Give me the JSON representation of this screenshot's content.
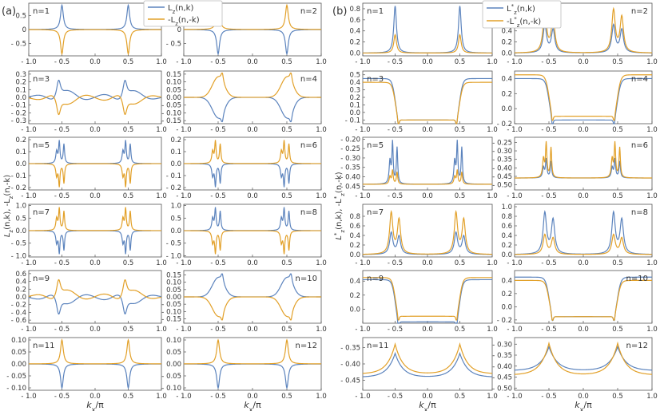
{
  "colors": {
    "blue": "#5b83bd",
    "orange": "#e2a028",
    "axis": "#555555",
    "text": "#333333"
  },
  "panels": [
    {
      "label": "(a)",
      "xlabel": "k_x/π",
      "ylabel_main": "L",
      "ylabel_sub": "z",
      "ylabel_rest": "(n,k), -L",
      "ylabel_sub2": "z",
      "ylabel_tail": "(n,-k)",
      "legend": [
        {
          "main": "L",
          "sub": "z",
          "sup": "",
          "rest": "(n,k)",
          "color": "blue"
        },
        {
          "main": "-L",
          "sub": "z",
          "sup": "",
          "rest": "(n,-k)",
          "color": "orange"
        }
      ]
    },
    {
      "label": "(b)",
      "xlabel": "k_x/π",
      "ylabel_main": "L",
      "ylabel_sub": "z",
      "ylabel_sup": "*",
      "ylabel_rest": "(n,k), -L",
      "ylabel_sub2": "z",
      "ylabel_sup2": "*",
      "ylabel_tail": "(n,-k)",
      "legend": [
        {
          "main": "L",
          "sub": "z",
          "sup": "*",
          "rest": "(n,k)",
          "color": "blue"
        },
        {
          "main": "-L",
          "sub": "z",
          "sup": "*",
          "rest": "(n,-k)",
          "color": "orange"
        }
      ]
    }
  ],
  "chart_data": [
    {
      "panel": 0,
      "col": 0,
      "n": 1,
      "type": "line",
      "label": "n=1",
      "ylim": [
        -0.95,
        0.95
      ],
      "yticks": [
        "0.5",
        "0",
        "- 0.5"
      ],
      "ytick_values": [
        0.5,
        0,
        -0.5
      ],
      "series": [
        {
          "name": "L_z(n,k)",
          "shape": "sharp",
          "kind": "pos",
          "amp": 0.88,
          "base": 0
        },
        {
          "name": "-L_z(n,-k)",
          "shape": "sharp",
          "kind": "neg",
          "amp": -0.88,
          "base": 0
        }
      ]
    },
    {
      "panel": 0,
      "col": 1,
      "n": 2,
      "type": "line",
      "label": "n=2",
      "ylim": [
        -0.95,
        0.95
      ],
      "yticks": [
        "0.5",
        "0",
        "- 0.5"
      ],
      "ytick_values": [
        0.5,
        0,
        -0.5
      ],
      "series": [
        {
          "name": "L_z(n,k)",
          "shape": "sharp",
          "kind": "neg",
          "amp": -0.88,
          "base": 0
        },
        {
          "name": "-L_z(n,-k)",
          "shape": "sharp",
          "kind": "pos",
          "amp": 0.88,
          "base": 0
        }
      ]
    },
    {
      "panel": 0,
      "col": 0,
      "n": 3,
      "type": "line",
      "label": "n=3",
      "ylim": [
        -0.34,
        0.34
      ],
      "yticks": [
        "0.3",
        "0.2",
        "0.1",
        "0.0",
        "- 0.1",
        "- 0.2",
        "- 0.3"
      ],
      "ytick_values": [
        0.3,
        0.2,
        0.1,
        0,
        -0.1,
        -0.2,
        -0.3
      ],
      "series": [
        {
          "name": "L_z(n,k)",
          "shape": "osc",
          "kind": "pos",
          "amp": 0.3,
          "base": 0
        },
        {
          "name": "-L_z(n,-k)",
          "shape": "osc",
          "kind": "neg",
          "amp": -0.3,
          "base": 0
        }
      ]
    },
    {
      "panel": 0,
      "col": 1,
      "n": 4,
      "type": "line",
      "label": "n=4",
      "ylim": [
        -0.17,
        0.17
      ],
      "yticks": [
        "0.15",
        "0.10",
        "0.05",
        "0.00",
        "- 0.05",
        "- 0.10",
        "- 0.15"
      ],
      "ytick_values": [
        0.15,
        0.1,
        0.05,
        0,
        -0.05,
        -0.1,
        -0.15
      ],
      "series": [
        {
          "name": "L_z(n,k)",
          "shape": "wide",
          "kind": "neg",
          "amp": -0.15,
          "base": 0
        },
        {
          "name": "-L_z(n,-k)",
          "shape": "wide",
          "kind": "pos",
          "amp": 0.15,
          "base": 0
        }
      ]
    },
    {
      "panel": 0,
      "col": 0,
      "n": 5,
      "type": "line",
      "label": "n=5",
      "ylim": [
        -0.22,
        0.22
      ],
      "yticks": [
        "0.2",
        "0.1",
        "0.0",
        "- 0.1",
        "- 0.2"
      ],
      "ytick_values": [
        0.2,
        0.1,
        0,
        -0.1,
        -0.2
      ],
      "series": [
        {
          "name": "L_z(n,k)",
          "shape": "multi",
          "kind": "pos",
          "amp": 0.2,
          "base": 0
        },
        {
          "name": "-L_z(n,-k)",
          "shape": "multi",
          "kind": "neg",
          "amp": -0.2,
          "base": 0
        }
      ]
    },
    {
      "panel": 0,
      "col": 1,
      "n": 6,
      "type": "line",
      "label": "n=6",
      "ylim": [
        -0.22,
        0.22
      ],
      "yticks": [
        "0.2",
        "0.1",
        "0.0",
        "- 0.1",
        "- 0.2"
      ],
      "ytick_values": [
        0.2,
        0.1,
        0,
        -0.1,
        -0.2
      ],
      "series": [
        {
          "name": "L_z(n,k)",
          "shape": "multi",
          "kind": "neg",
          "amp": -0.2,
          "base": 0
        },
        {
          "name": "-L_z(n,-k)",
          "shape": "multi",
          "kind": "pos",
          "amp": 0.2,
          "base": 0
        }
      ]
    },
    {
      "panel": 0,
      "col": 0,
      "n": 7,
      "type": "line",
      "label": "n=7",
      "ylim": [
        -1.05,
        1.05
      ],
      "yticks": [
        "1.0",
        "0.5",
        "0.0",
        "- 0.5",
        "- 1.0"
      ],
      "ytick_values": [
        1,
        0.5,
        0,
        -0.5,
        -1
      ],
      "series": [
        {
          "name": "L_z(n,k)",
          "shape": "multi",
          "kind": "neg",
          "amp": -0.95,
          "base": 0
        },
        {
          "name": "-L_z(n,-k)",
          "shape": "multi",
          "kind": "pos",
          "amp": 0.95,
          "base": 0
        }
      ]
    },
    {
      "panel": 0,
      "col": 1,
      "n": 8,
      "type": "line",
      "label": "n=8",
      "ylim": [
        -1.05,
        1.05
      ],
      "yticks": [
        "1.0",
        "0.5",
        "0.0",
        "- 0.5",
        "- 1.0"
      ],
      "ytick_values": [
        1,
        0.5,
        0,
        -0.5,
        -1
      ],
      "series": [
        {
          "name": "L_z(n,k)",
          "shape": "multi",
          "kind": "pos",
          "amp": 0.95,
          "base": 0
        },
        {
          "name": "-L_z(n,-k)",
          "shape": "multi",
          "kind": "neg",
          "amp": -0.95,
          "base": 0
        }
      ]
    },
    {
      "panel": 0,
      "col": 0,
      "n": 9,
      "type": "line",
      "label": "n=9",
      "ylim": [
        -0.68,
        0.68
      ],
      "yticks": [
        "0.6",
        "0.4",
        "0.2",
        "0.0",
        "- 0.2",
        "- 0.4",
        "- 0.6"
      ],
      "ytick_values": [
        0.6,
        0.4,
        0.2,
        0,
        -0.2,
        -0.4,
        -0.6
      ],
      "series": [
        {
          "name": "L_z(n,k)",
          "shape": "osc",
          "kind": "neg",
          "amp": -0.6,
          "base": 0
        },
        {
          "name": "-L_z(n,-k)",
          "shape": "osc",
          "kind": "pos",
          "amp": 0.6,
          "base": 0
        }
      ]
    },
    {
      "panel": 0,
      "col": 1,
      "n": 10,
      "type": "line",
      "label": "n=10",
      "ylim": [
        -0.18,
        0.18
      ],
      "yticks": [
        "0.15",
        "0.10",
        "0.05",
        "0.00",
        "- 0.05",
        "- 0.10",
        "- 0.15"
      ],
      "ytick_values": [
        0.15,
        0.1,
        0.05,
        0,
        -0.05,
        -0.1,
        -0.15
      ],
      "series": [
        {
          "name": "L_z(n,k)",
          "shape": "wide",
          "kind": "pos",
          "amp": 0.15,
          "base": 0
        },
        {
          "name": "-L_z(n,-k)",
          "shape": "wide",
          "kind": "neg",
          "amp": -0.15,
          "base": 0
        }
      ]
    },
    {
      "panel": 0,
      "col": 0,
      "n": 11,
      "type": "line",
      "label": "n=11",
      "ylim": [
        -0.11,
        0.11
      ],
      "yticks": [
        "0.10",
        "0.05",
        "0.00",
        "- 0.05",
        "- 0.10"
      ],
      "ytick_values": [
        0.1,
        0.05,
        0,
        -0.05,
        -0.1
      ],
      "series": [
        {
          "name": "L_z(n,k)",
          "shape": "sharp",
          "kind": "neg",
          "amp": -0.1,
          "base": 0
        },
        {
          "name": "-L_z(n,-k)",
          "shape": "sharp",
          "kind": "pos",
          "amp": 0.1,
          "base": 0
        }
      ]
    },
    {
      "panel": 0,
      "col": 1,
      "n": 12,
      "type": "line",
      "label": "n=12",
      "ylim": [
        -0.11,
        0.11
      ],
      "yticks": [
        "0.10",
        "0.05",
        "0.00",
        "- 0.05",
        "- 0.10"
      ],
      "ytick_values": [
        0.1,
        0.05,
        0,
        -0.05,
        -0.1
      ],
      "series": [
        {
          "name": "L_z(n,k)",
          "shape": "sharp",
          "kind": "neg",
          "amp": -0.1,
          "base": 0
        },
        {
          "name": "-L_z(n,-k)",
          "shape": "sharp",
          "kind": "pos",
          "amp": 0.1,
          "base": 0
        }
      ]
    },
    {
      "panel": 1,
      "col": 0,
      "n": 1,
      "type": "line",
      "label": "n=1",
      "ylim": [
        -0.05,
        0.9
      ],
      "yticks": [
        "0.8",
        "0.6",
        "0.4",
        "0.2",
        "0.0"
      ],
      "ytick_values": [
        0.8,
        0.6,
        0.4,
        0.2,
        0
      ],
      "series": [
        {
          "name": "L*_z(n,k)",
          "shape": "sharp",
          "kind": "pos",
          "amp": 0.85,
          "base": 0
        },
        {
          "name": "-L*_z(n,-k)",
          "shape": "sharp",
          "kind": "pos",
          "amp": 0.33,
          "base": 0
        }
      ]
    },
    {
      "panel": 1,
      "col": 1,
      "n": 2,
      "type": "line",
      "label": "n=2",
      "ylim": [
        -0.05,
        0.9
      ],
      "yticks": [
        "0.8",
        "0.6",
        "0.4",
        "0.2",
        "0.0"
      ],
      "ytick_values": [
        0.8,
        0.6,
        0.4,
        0.2,
        0
      ],
      "series": [
        {
          "name": "L*_z(n,k)",
          "shape": "double",
          "kind": "pos",
          "amp": 0.55,
          "base": 0
        },
        {
          "name": "-L*_z(n,-k)",
          "shape": "double",
          "kind": "pos",
          "amp": 0.85,
          "base": 0
        }
      ]
    },
    {
      "panel": 1,
      "col": 0,
      "n": 3,
      "type": "line",
      "label": "n=3",
      "ylim": [
        -0.15,
        0.55
      ],
      "yticks": [
        "0.5",
        "0.4",
        "0.3",
        "0.2",
        "0.1",
        "0.0",
        "- 0.1"
      ],
      "ytick_values": [
        0.5,
        0.4,
        0.3,
        0.2,
        0.1,
        0,
        -0.1
      ],
      "series": [
        {
          "name": "L*_z(n,k)",
          "shape": "well",
          "kind": "neg",
          "amp": -0.55,
          "base": 0.45
        },
        {
          "name": "-L*_z(n,-k)",
          "shape": "well",
          "kind": "neg",
          "amp": -0.5,
          "base": 0.4
        }
      ]
    },
    {
      "panel": 1,
      "col": 1,
      "n": 4,
      "type": "line",
      "label": "n=4",
      "ylim": [
        -0.2,
        0.5
      ],
      "yticks": [
        "0.4",
        "0.2",
        "0.0",
        "- 0.2"
      ],
      "ytick_values": [
        0.4,
        0.2,
        0,
        -0.2
      ],
      "series": [
        {
          "name": "L*_z(n,k)",
          "shape": "well",
          "kind": "neg",
          "amp": -0.55,
          "base": 0.4
        },
        {
          "name": "-L*_z(n,-k)",
          "shape": "well",
          "kind": "neg",
          "amp": -0.55,
          "base": 0.45
        }
      ]
    },
    {
      "panel": 1,
      "col": 0,
      "n": 5,
      "type": "line",
      "label": "n=5",
      "ylim": [
        -0.47,
        -0.19
      ],
      "yticks": [
        "- 0.20",
        "- 0.25",
        "- 0.30",
        "- 0.35",
        "- 0.40",
        "- 0.45"
      ],
      "ytick_values": [
        -0.2,
        -0.25,
        -0.3,
        -0.35,
        -0.4,
        -0.45
      ],
      "series": [
        {
          "name": "L*_z(n,k)",
          "shape": "multi",
          "kind": "pos",
          "amp": 0.24,
          "base": -0.44
        },
        {
          "name": "-L*_z(n,-k)",
          "shape": "multi",
          "kind": "pos",
          "amp": 0.08,
          "base": -0.44
        }
      ]
    },
    {
      "panel": 1,
      "col": 1,
      "n": 6,
      "type": "line",
      "label": "n=6",
      "ylim": [
        -0.53,
        -0.22
      ],
      "yticks": [
        "- 0.25",
        "- 0.30",
        "- 0.35",
        "- 0.40",
        "- 0.45",
        "- 0.50"
      ],
      "ytick_values": [
        -0.25,
        -0.3,
        -0.35,
        -0.4,
        -0.45,
        -0.5
      ],
      "series": [
        {
          "name": "L*_z(n,k)",
          "shape": "multi",
          "kind": "pos",
          "amp": 0.12,
          "base": -0.46
        },
        {
          "name": "-L*_z(n,-k)",
          "shape": "multi",
          "kind": "pos",
          "amp": 0.22,
          "base": -0.46
        }
      ]
    },
    {
      "panel": 1,
      "col": 0,
      "n": 7,
      "type": "line",
      "label": "n=7",
      "ylim": [
        -0.05,
        1.05
      ],
      "yticks": [
        "0.8",
        "0.6",
        "0.4",
        "0.2",
        "0.0"
      ],
      "ytick_values": [
        0.8,
        0.6,
        0.4,
        0.2,
        0
      ],
      "series": [
        {
          "name": "L*_z(n,k)",
          "shape": "double",
          "kind": "pos",
          "amp": 0.5,
          "base": 0
        },
        {
          "name": "-L*_z(n,-k)",
          "shape": "double",
          "kind": "pos",
          "amp": 0.95,
          "base": 0
        }
      ]
    },
    {
      "panel": 1,
      "col": 1,
      "n": 8,
      "type": "line",
      "label": "n=8",
      "ylim": [
        -0.05,
        1.05
      ],
      "yticks": [
        "1.0",
        "0.8",
        "0.6",
        "0.4",
        "0.2",
        "0.0"
      ],
      "ytick_values": [
        1,
        0.8,
        0.6,
        0.4,
        0.2,
        0
      ],
      "series": [
        {
          "name": "L*_z(n,k)",
          "shape": "double",
          "kind": "pos",
          "amp": 0.95,
          "base": 0
        },
        {
          "name": "-L*_z(n,-k)",
          "shape": "double",
          "kind": "pos",
          "amp": 0.45,
          "base": 0
        }
      ]
    },
    {
      "panel": 1,
      "col": 0,
      "n": 9,
      "type": "line",
      "label": "n=9",
      "ylim": [
        -0.2,
        0.55
      ],
      "yticks": [
        "0.4",
        "0.2",
        "0.0"
      ],
      "ytick_values": [
        0.4,
        0.2,
        0
      ],
      "series": [
        {
          "name": "L*_z(n,k)",
          "shape": "well",
          "kind": "neg",
          "amp": -0.6,
          "base": 0.42
        },
        {
          "name": "-L*_z(n,-k)",
          "shape": "well",
          "kind": "neg",
          "amp": -0.55,
          "base": 0.45
        }
      ]
    },
    {
      "panel": 1,
      "col": 1,
      "n": 10,
      "type": "line",
      "label": "n=10",
      "ylim": [
        -0.25,
        0.55
      ],
      "yticks": [
        "0.4",
        "0.2",
        "0.0",
        "- 0.2"
      ],
      "ytick_values": [
        0.4,
        0.2,
        0,
        -0.2
      ],
      "series": [
        {
          "name": "L*_z(n,k)",
          "shape": "well",
          "kind": "neg",
          "amp": -0.6,
          "base": 0.45
        },
        {
          "name": "-L*_z(n,-k)",
          "shape": "well",
          "kind": "neg",
          "amp": -0.55,
          "base": 0.4
        }
      ]
    },
    {
      "panel": 1,
      "col": 0,
      "n": 11,
      "type": "line",
      "label": "n=11",
      "ylim": [
        -0.48,
        -0.32
      ],
      "yticks": [
        "- 0.35",
        "- 0.40",
        "- 0.45"
      ],
      "ytick_values": [
        -0.35,
        -0.4,
        -0.45
      ],
      "series": [
        {
          "name": "L*_z(n,k)",
          "shape": "cusp",
          "kind": "pos",
          "amp": 0.08,
          "base": -0.44
        },
        {
          "name": "-L*_z(n,-k)",
          "shape": "cusp",
          "kind": "pos",
          "amp": 0.1,
          "base": -0.43
        }
      ]
    },
    {
      "panel": 1,
      "col": 1,
      "n": 12,
      "type": "line",
      "label": "n=12",
      "ylim": [
        -0.51,
        -0.27
      ],
      "yticks": [
        "- 0.30",
        "- 0.35",
        "- 0.40",
        "- 0.45",
        "- 0.50"
      ],
      "ytick_values": [
        -0.3,
        -0.35,
        -0.4,
        -0.45,
        -0.5
      ],
      "series": [
        {
          "name": "L*_z(n,k)",
          "shape": "cusp",
          "kind": "pos",
          "amp": 0.12,
          "base": -0.42
        },
        {
          "name": "-L*_z(n,-k)",
          "shape": "cusp",
          "kind": "pos",
          "amp": 0.16,
          "base": -0.44
        }
      ]
    }
  ],
  "xaxis": {
    "xlim": [
      -1,
      1
    ],
    "ticks": [
      -1,
      -0.5,
      0,
      0.5,
      1
    ],
    "tick_labels": [
      "- 1.0",
      "- 0.5",
      "0.0",
      "0.5",
      "1.0"
    ]
  }
}
